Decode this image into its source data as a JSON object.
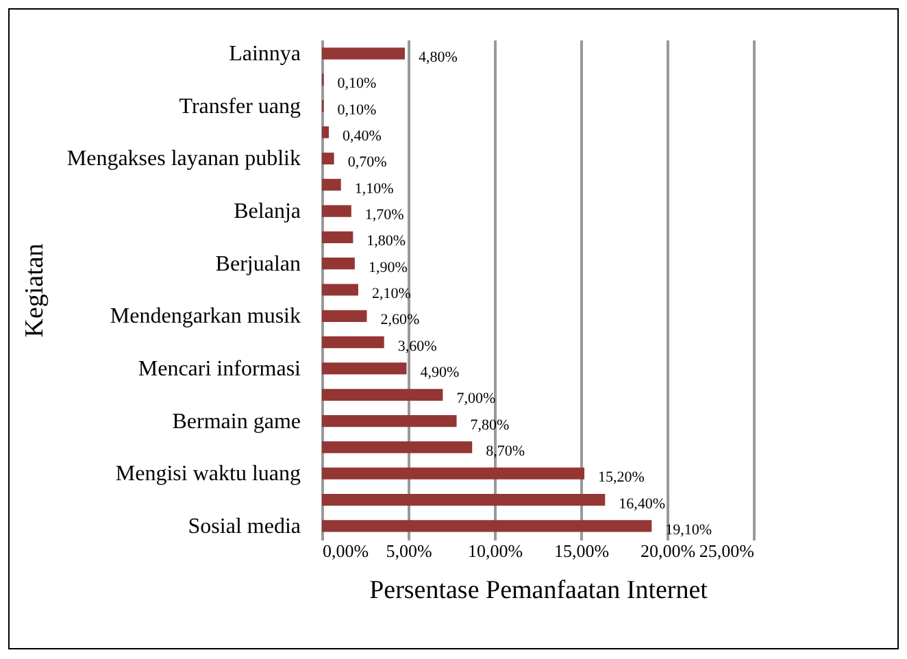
{
  "chart_data": {
    "type": "bar",
    "orientation": "horizontal",
    "xlabel": "Persentase Pemanfaatan Internet",
    "ylabel": "Kegiatan",
    "categories": [
      "Lainnya",
      null,
      "Transfer uang",
      null,
      "Mengakses layanan publik",
      null,
      "Belanja",
      null,
      "Berjualan",
      null,
      "Mendengarkan musik",
      null,
      "Mencari informasi",
      null,
      "Bermain game",
      null,
      "Mengisi waktu luang",
      null,
      "Sosial media"
    ],
    "values": [
      4.8,
      0.1,
      0.1,
      0.4,
      0.7,
      1.1,
      1.7,
      1.8,
      1.9,
      2.1,
      2.6,
      3.6,
      4.9,
      7.0,
      7.8,
      8.7,
      15.2,
      16.4,
      19.1
    ],
    "value_labels": [
      "4,80%",
      "0,10%",
      "0,10%",
      "0,40%",
      "0,70%",
      "1,10%",
      "1,70%",
      "1,80%",
      "1,90%",
      "2,10%",
      "2,60%",
      "3,60%",
      "4,90%",
      "7,00%",
      "7,80%",
      "8,70%",
      "15,20%",
      "16,40%",
      "19,10%"
    ],
    "color": "#943634",
    "xlim": [
      0,
      25
    ],
    "xticks": [
      {
        "value": 0,
        "label": "0,00%"
      },
      {
        "value": 5,
        "label": "5,00%"
      },
      {
        "value": 10,
        "label": "10,00%"
      },
      {
        "value": 15,
        "label": "15,00%"
      },
      {
        "value": 20,
        "label": "20,00%"
      },
      {
        "value": 25,
        "label": "25,00%"
      }
    ],
    "grid": "x"
  }
}
